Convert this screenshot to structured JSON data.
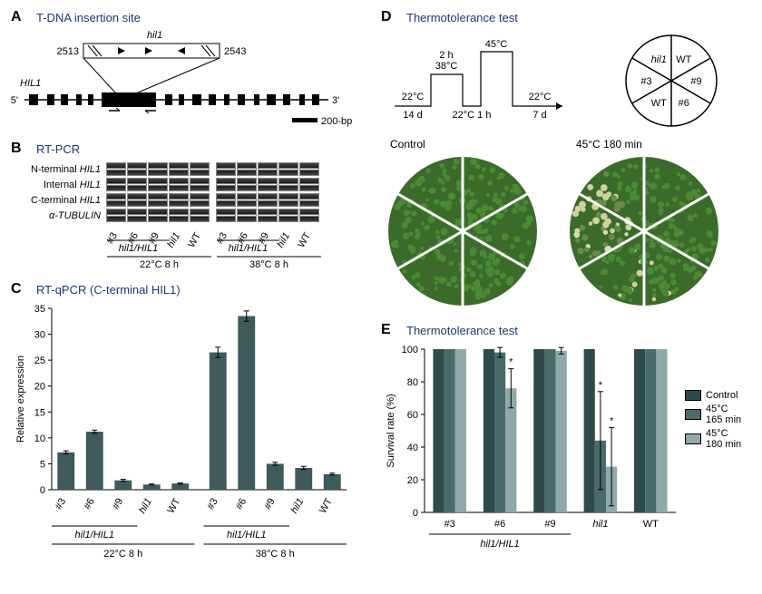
{
  "panelA": {
    "label": "A",
    "title": "T-DNA insertion site",
    "mutant": "hil1",
    "pos_left": "2513",
    "pos_right": "2543",
    "gene": "HIL1",
    "five_prime": "5'",
    "three_prime": "3'",
    "scale": "200-bp"
  },
  "panelB": {
    "label": "B",
    "title": "RT-PCR",
    "rows": [
      "N-terminal HIL1",
      "Internal HIL1",
      "C-terminal HIL1",
      "α-TUBULIN"
    ],
    "lanes": [
      "#3",
      "#6",
      "#9",
      "hil1",
      "WT",
      "#3",
      "#6",
      "#9",
      "hil1",
      "WT"
    ],
    "group_label": "hil1/HIL1",
    "conditions": [
      "22°C 8 h",
      "38°C 8 h"
    ]
  },
  "panelC": {
    "label": "C",
    "title": "RT-qPCR (C-terminal HIL1)",
    "ylabel": "Relative expression",
    "ylim": [
      0,
      35
    ],
    "ytick_step": 5,
    "categories": [
      "#3",
      "#6",
      "#9",
      "hil1",
      "WT",
      "#3",
      "#6",
      "#9",
      "hil1",
      "WT"
    ],
    "values": [
      7.2,
      11.2,
      1.8,
      1.0,
      1.2,
      26.5,
      33.5,
      5.0,
      4.2,
      3.0
    ],
    "errors": [
      0.3,
      0.3,
      0.2,
      0.1,
      0.1,
      1.0,
      1.0,
      0.3,
      0.3,
      0.2
    ],
    "group_label": "hil1/HIL1",
    "conditions": [
      "22°C 8 h",
      "38°C 8 h"
    ],
    "bar_color": "#3e5a5a",
    "background": "#ffffff",
    "bar_width": 0.6
  },
  "panelD": {
    "label": "D",
    "title": "Thermotolerance test",
    "protocol": {
      "temp1": "22°C",
      "dur1": "14 d",
      "temp2": "38°C",
      "dur2": "2 h",
      "temp3": "45°C",
      "recovery_temp": "22°C",
      "recovery_gap": "22°C 1 h",
      "final": "22°C",
      "final_dur": "7 d"
    },
    "wedge_labels": [
      "hil1",
      "WT",
      "#3",
      "#9",
      "WT",
      "#6"
    ],
    "control_label": "Control",
    "heat_label": "45°C 180 min",
    "plant_green": "#3a6b2a",
    "plant_stressed": "#6a8a4a",
    "plant_dead": "#d0d0a0"
  },
  "panelE": {
    "label": "E",
    "title": "Thermotolerance test",
    "ylabel": "Survival rate (%)",
    "ylim": [
      0,
      100
    ],
    "ytick_step": 20,
    "groups": [
      "#3",
      "#6",
      "#9",
      "hil1",
      "WT"
    ],
    "group_label": "hil1/HIL1",
    "series": [
      {
        "name": "Control",
        "color": "#2f4a4a",
        "values": [
          100,
          100,
          100,
          100,
          100
        ],
        "errors": [
          0,
          0,
          0,
          0,
          0
        ],
        "sig": [
          false,
          false,
          false,
          false,
          false
        ]
      },
      {
        "name": "45°C 165 min",
        "color": "#4a6b6b",
        "values": [
          100,
          98,
          100,
          44,
          100
        ],
        "errors": [
          0,
          3,
          0,
          30,
          0
        ],
        "sig": [
          false,
          false,
          false,
          true,
          false
        ]
      },
      {
        "name": "45°C 180 min",
        "color": "#8fa8a8",
        "values": [
          100,
          76,
          99,
          28,
          100
        ],
        "errors": [
          0,
          12,
          2,
          24,
          0
        ],
        "sig": [
          false,
          true,
          false,
          true,
          false
        ]
      }
    ],
    "bar_width": 0.22
  }
}
